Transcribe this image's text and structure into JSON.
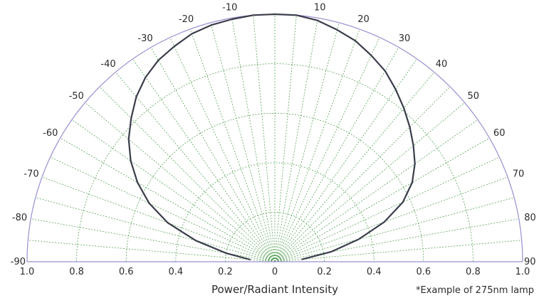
{
  "chart_data": {
    "type": "polar-line",
    "title": "",
    "xlabel": "Power/Radiant Intensity",
    "note": "*Example of 275nm lamp",
    "angle_ticks": [
      -90,
      -80,
      -70,
      -60,
      -50,
      -40,
      -30,
      -20,
      -10,
      10,
      20,
      30,
      40,
      50,
      60,
      70,
      80,
      90
    ],
    "angle_grid": [
      -85,
      -80,
      -75,
      -70,
      -65,
      -60,
      -55,
      -50,
      -45,
      -40,
      -35,
      -30,
      -25,
      -20,
      -15,
      -10,
      -5,
      0,
      5,
      10,
      15,
      20,
      25,
      30,
      35,
      40,
      45,
      50,
      55,
      60,
      65,
      70,
      75,
      80,
      85
    ],
    "radius_ticks": [
      "1.0",
      "0.8",
      "0.6",
      "0.4",
      "0.2",
      "0",
      "0.2",
      "0.4",
      "0.6",
      "0.8",
      "1.0"
    ],
    "radius_grid": [
      0.2,
      0.4,
      0.6,
      0.8
    ],
    "rlim": [
      0,
      1.0
    ],
    "series": [
      {
        "points": [
          {
            "angle": -85,
            "r": 0.1
          },
          {
            "angle": -80,
            "r": 0.2
          },
          {
            "angle": -75,
            "r": 0.33
          },
          {
            "angle": -70,
            "r": 0.46
          },
          {
            "angle": -65,
            "r": 0.56
          },
          {
            "angle": -60,
            "r": 0.64
          },
          {
            "angle": -55,
            "r": 0.71
          },
          {
            "angle": -50,
            "r": 0.77
          },
          {
            "angle": -45,
            "r": 0.82
          },
          {
            "angle": -40,
            "r": 0.87
          },
          {
            "angle": -35,
            "r": 0.91
          },
          {
            "angle": -30,
            "r": 0.94
          },
          {
            "angle": -25,
            "r": 0.96
          },
          {
            "angle": -20,
            "r": 0.98
          },
          {
            "angle": -15,
            "r": 0.99
          },
          {
            "angle": -10,
            "r": 0.995
          },
          {
            "angle": -5,
            "r": 1.0
          },
          {
            "angle": 0,
            "r": 1.0
          },
          {
            "angle": 5,
            "r": 1.0
          },
          {
            "angle": 10,
            "r": 0.99
          },
          {
            "angle": 15,
            "r": 0.97
          },
          {
            "angle": 20,
            "r": 0.95
          },
          {
            "angle": 25,
            "r": 0.92
          },
          {
            "angle": 30,
            "r": 0.89
          },
          {
            "angle": 35,
            "r": 0.85
          },
          {
            "angle": 40,
            "r": 0.81
          },
          {
            "angle": 45,
            "r": 0.77
          },
          {
            "angle": 50,
            "r": 0.73
          },
          {
            "angle": 55,
            "r": 0.69
          },
          {
            "angle": 60,
            "r": 0.64
          },
          {
            "angle": 65,
            "r": 0.57
          },
          {
            "angle": 70,
            "r": 0.47
          },
          {
            "angle": 75,
            "r": 0.35
          },
          {
            "angle": 80,
            "r": 0.23
          },
          {
            "angle": 85,
            "r": 0.11
          }
        ]
      }
    ],
    "grid": true,
    "colors": {
      "grid": "#5aa35a",
      "outline": "#9b8fd0",
      "curve": "#3a3d4a",
      "text": "#2b2b2b"
    }
  }
}
